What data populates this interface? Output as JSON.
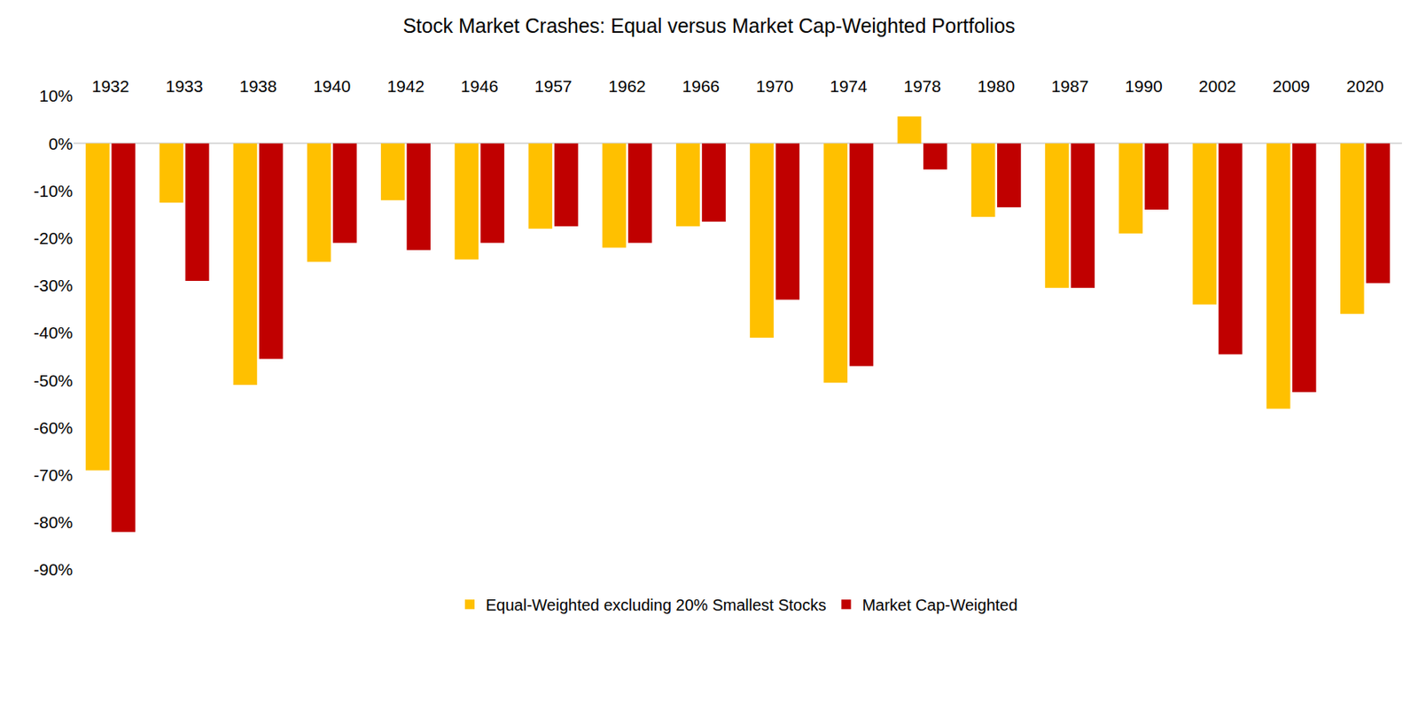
{
  "chart_data": {
    "type": "bar",
    "title": "Stock Market Crashes: Equal versus Market Cap-Weighted Portfolios",
    "categories": [
      "1932",
      "1933",
      "1938",
      "1940",
      "1942",
      "1946",
      "1957",
      "1962",
      "1966",
      "1970",
      "1974",
      "1978",
      "1980",
      "1987",
      "1990",
      "2002",
      "2009",
      "2020"
    ],
    "series": [
      {
        "name": "Equal-Weighted excluding 20% Smallest Stocks",
        "color": "#FFC000",
        "values": [
          -69,
          -12.5,
          -51,
          -25,
          -12,
          -24.5,
          -18,
          -22,
          -17.5,
          -41,
          -50.5,
          5.7,
          -15.5,
          -30.5,
          -19,
          -34,
          -56,
          -36
        ]
      },
      {
        "name": "Market Cap-Weighted",
        "color": "#C00000",
        "values": [
          -82,
          -29,
          -45.5,
          -21,
          -22.5,
          -21,
          -17.5,
          -21,
          -16.5,
          -33,
          -47,
          -5.5,
          -13.5,
          -30.5,
          -14,
          -44.5,
          -52.5,
          -29.5
        ]
      }
    ],
    "ylim": [
      -90,
      10
    ],
    "yticks": [
      {
        "value": 10,
        "label": "10%"
      },
      {
        "value": 0,
        "label": "0%"
      },
      {
        "value": -10,
        "label": "-10%"
      },
      {
        "value": -20,
        "label": "-20%"
      },
      {
        "value": -30,
        "label": "-30%"
      },
      {
        "value": -40,
        "label": "-40%"
      },
      {
        "value": -50,
        "label": "-50%"
      },
      {
        "value": -60,
        "label": "-60%"
      },
      {
        "value": -70,
        "label": "-70%"
      },
      {
        "value": -80,
        "label": "-80%"
      },
      {
        "value": -90,
        "label": "-90%"
      }
    ],
    "grid": false,
    "legend": "bottom"
  }
}
